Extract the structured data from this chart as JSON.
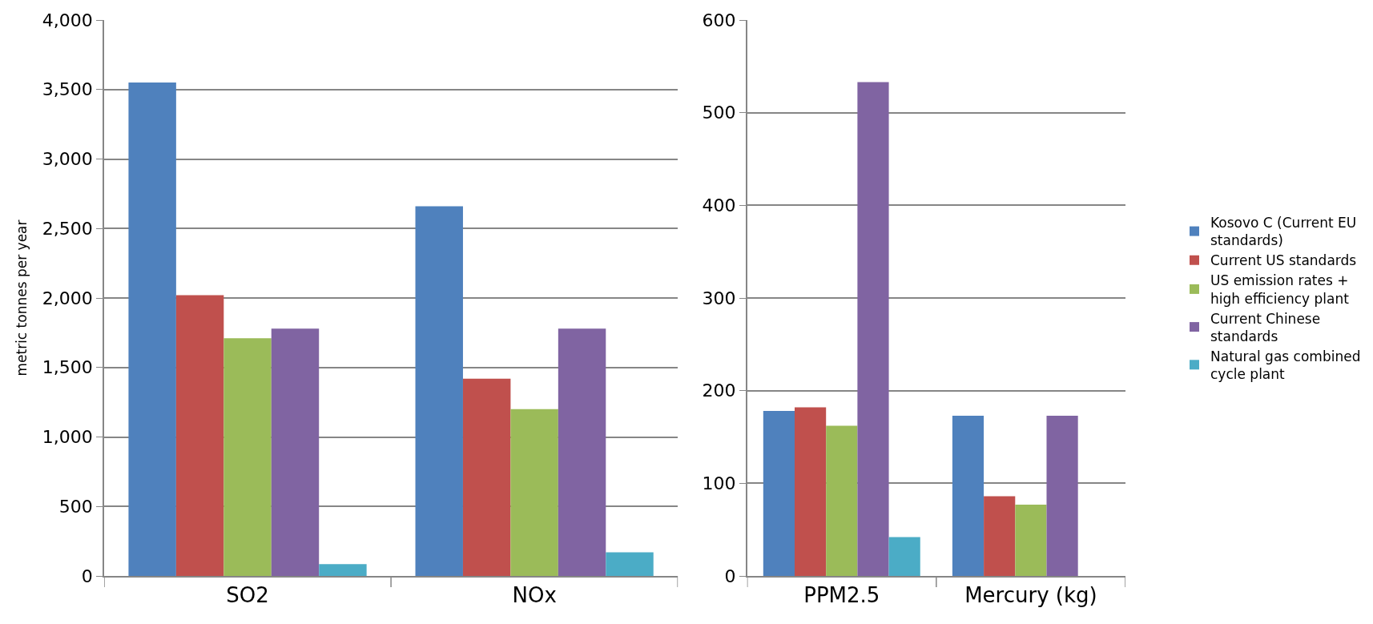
{
  "chart_data": [
    {
      "type": "bar",
      "ylabel": "metric tonnes per year",
      "categories": [
        "SO2",
        "NOx"
      ],
      "ylim": [
        0,
        4000
      ],
      "yticks": [
        0,
        {
          "value": 500,
          "label": "500"
        },
        {
          "value": 1000,
          "label": "1,000"
        },
        {
          "value": 1500,
          "label": "1,500"
        },
        {
          "value": 2000,
          "label": "2,000"
        },
        {
          "value": 2500,
          "label": "2,500"
        },
        {
          "value": 3000,
          "label": "3,000"
        },
        {
          "value": 3500,
          "label": "3,500"
        },
        {
          "value": 4000,
          "label": "4,000"
        }
      ],
      "grid": "y",
      "series": [
        {
          "color": "#4f81bd",
          "values": [
            3550,
            2660
          ]
        },
        {
          "color": "#c0504d",
          "values": [
            2020,
            1420
          ]
        },
        {
          "color": "#9bbb59",
          "values": [
            1710,
            1200
          ]
        },
        {
          "color": "#8064a2",
          "values": [
            1780,
            1780
          ]
        },
        {
          "color": "#4bacc6",
          "values": [
            85,
            170
          ]
        }
      ]
    },
    {
      "type": "bar",
      "categories": [
        "PPM2.5",
        "Mercury (kg)"
      ],
      "ylim": [
        0,
        600
      ],
      "yticks": [
        0,
        100,
        200,
        300,
        400,
        500,
        600
      ],
      "grid": "y",
      "legend": "right",
      "series": [
        {
          "name": "Kosovo C (Current EU standards)",
          "color": "#4f81bd",
          "values": [
            178,
            173
          ]
        },
        {
          "name": "Current US standards",
          "color": "#c0504d",
          "values": [
            182,
            86
          ]
        },
        {
          "name": "US emission rates + high efficiency plant",
          "color": "#9bbb59",
          "values": [
            162,
            77
          ]
        },
        {
          "name": "Current Chinese standards",
          "color": "#8064a2",
          "values": [
            533,
            173
          ]
        },
        {
          "name": "Natural gas combined cycle plant",
          "color": "#4bacc6",
          "values": [
            42,
            null
          ]
        }
      ]
    }
  ]
}
